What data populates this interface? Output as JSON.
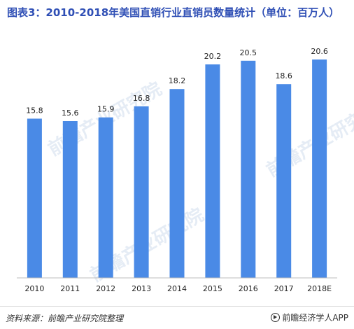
{
  "header": {
    "title": "图表3：2010-2018年美国直销行业直销员数量统计（单位：百万人）"
  },
  "chart_data": {
    "type": "bar",
    "title": "图表3：2010-2018年美国直销行业直销员数量统计（单位：百万人）",
    "xlabel": "",
    "ylabel": "",
    "categories": [
      "2010",
      "2011",
      "2012",
      "2013",
      "2014",
      "2015",
      "2016",
      "2017",
      "2018E"
    ],
    "values": [
      15.8,
      15.6,
      15.9,
      16.8,
      18.2,
      20.2,
      20.5,
      18.6,
      20.6
    ],
    "data_labels": [
      "15.8",
      "15.6",
      "15.9",
      "16.8",
      "18.2",
      "20.2",
      "20.5",
      "18.6",
      "20.6"
    ],
    "bar_color": "#4a8ae6",
    "grid": false,
    "legend": "none"
  },
  "footer": {
    "source": "资料来源：前瞻产业研究院整理",
    "brand": "前瞻经济学人APP"
  },
  "watermark": {
    "text": "前瞻产业研究院"
  }
}
